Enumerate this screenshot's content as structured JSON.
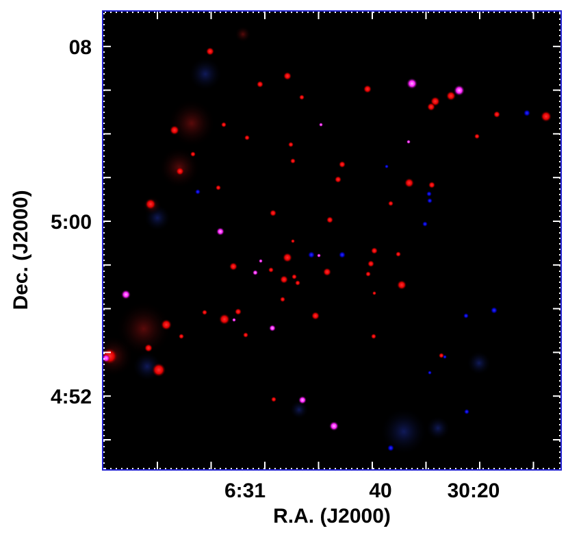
{
  "image": {
    "y_axis": {
      "label": "Dec. (J2000)",
      "ticks": [
        "08",
        "5:00",
        "4:52"
      ]
    },
    "x_axis": {
      "label": "R.A. (J2000)",
      "ticks": [
        "6:31",
        "40",
        "30:20"
      ]
    }
  }
}
